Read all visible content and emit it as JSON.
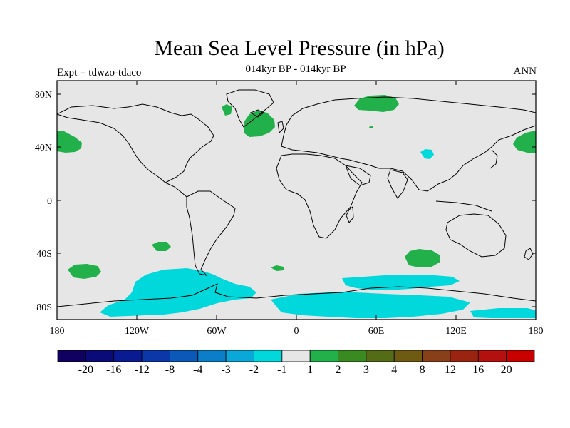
{
  "title": "Mean Sea Level Pressure (in hPa)",
  "subtitle": "014kyr BP - 014kyr BP",
  "left_title": "Expt = tdwzo-tdaco",
  "right_title": "ANN",
  "lat_ticks": [
    "80N",
    "40N",
    "0",
    "40S",
    "80S"
  ],
  "lon_ticks": [
    "180",
    "120W",
    "60W",
    "0",
    "60E",
    "120E",
    "180"
  ],
  "colors": {
    "background": "#e6e6e6",
    "negative_contour": "#00d8dc",
    "positive_contour": "#22b04a"
  },
  "colorbar": {
    "colors": [
      "#100060",
      "#0a0a78",
      "#0a1a92",
      "#0a38a8",
      "#0a58b8",
      "#0a7ec8",
      "#0aa8d8",
      "#00d8dc",
      "#e6e6e6",
      "#22b04a",
      "#3a8a22",
      "#556c16",
      "#6e5a10",
      "#884018",
      "#9a2410",
      "#b41010",
      "#c80000"
    ],
    "labels": [
      "-20",
      "-16",
      "-12",
      "-8",
      "-4",
      "-3",
      "-2",
      "-1",
      "1",
      "2",
      "3",
      "4",
      "8",
      "12",
      "16",
      "20"
    ]
  }
}
